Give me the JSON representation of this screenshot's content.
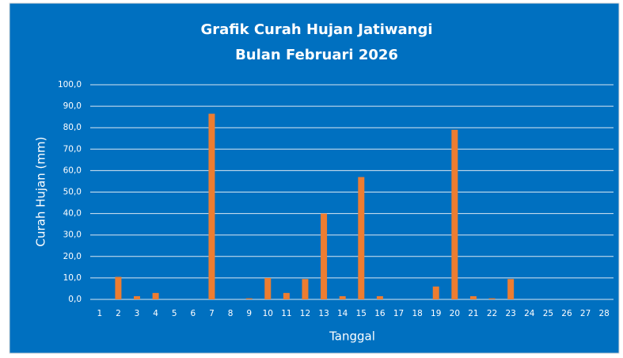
{
  "chart_data": {
    "type": "bar",
    "title": "Grafik Curah Hujan Jatiwangi",
    "subtitle": "Bulan Februari 2026",
    "y_label": "Curah Hujan (mm)",
    "x_label": "Tanggal",
    "categories": [
      "1",
      "2",
      "3",
      "4",
      "5",
      "6",
      "7",
      "8",
      "9",
      "10",
      "11",
      "12",
      "13",
      "14",
      "15",
      "16",
      "17",
      "18",
      "19",
      "20",
      "21",
      "22",
      "23",
      "24",
      "25",
      "26",
      "27",
      "28"
    ],
    "values": [
      0,
      10.5,
      1.5,
      3,
      0,
      0,
      86.5,
      0,
      0.5,
      10,
      3,
      9.5,
      40,
      1.5,
      57,
      1.5,
      0,
      0,
      6,
      79,
      1.5,
      0.5,
      9.5,
      0,
      0,
      0,
      0,
      0
    ],
    "color": "#ed7d31",
    "background": "#0070c0",
    "ylim": [
      0,
      100
    ],
    "yticks": [
      {
        "value": 0,
        "label": "0,0"
      },
      {
        "value": 10,
        "label": "10,0"
      },
      {
        "value": 20,
        "label": "20,0"
      },
      {
        "value": 30,
        "label": "30,0"
      },
      {
        "value": 40,
        "label": "40,0"
      },
      {
        "value": 50,
        "label": "50,0"
      },
      {
        "value": 60,
        "label": "60,0"
      },
      {
        "value": 70,
        "label": "70,0"
      },
      {
        "value": 80,
        "label": "80,0"
      },
      {
        "value": 90,
        "label": "90,0"
      },
      {
        "value": 100,
        "label": "100,0"
      }
    ],
    "grid": true
  }
}
